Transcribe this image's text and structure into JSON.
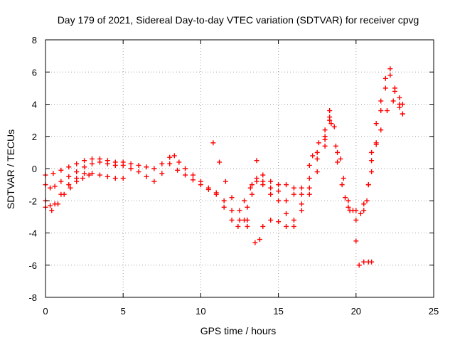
{
  "chart_data": {
    "type": "scatter",
    "title": "Day 179 of 2021, Sidereal Day-to-day VTEC variation (SDTVAR) for receiver cpvg",
    "xlabel": "GPS time / hours",
    "ylabel": "SDTVAR / TECUs",
    "xlim": [
      0,
      25
    ],
    "ylim": [
      -8,
      8
    ],
    "x_ticks": [
      0,
      5,
      10,
      15,
      20,
      25
    ],
    "y_ticks": [
      -8,
      -6,
      -4,
      -2,
      0,
      2,
      4,
      6,
      8
    ],
    "x_tick_labels": [
      "0",
      "5",
      "10",
      "15",
      "20",
      "25"
    ],
    "y_tick_labels": [
      "-8",
      "-6",
      "-4",
      "-2",
      "0",
      "2",
      "4",
      "6",
      "8"
    ],
    "grid": true,
    "marker": "plus",
    "color": "#ff0000",
    "series": [
      {
        "points": [
          [
            0.0,
            -0.4
          ],
          [
            0.5,
            -0.3
          ],
          [
            1.0,
            -0.1
          ],
          [
            1.5,
            0.1
          ],
          [
            2.0,
            0.3
          ],
          [
            2.5,
            0.5
          ],
          [
            3.0,
            0.6
          ],
          [
            3.5,
            0.6
          ],
          [
            4.0,
            0.5
          ],
          [
            4.5,
            0.4
          ],
          [
            5.0,
            0.4
          ],
          [
            5.5,
            0.3
          ],
          [
            6.0,
            0.2
          ],
          [
            6.5,
            0.1
          ],
          [
            7.0,
            0.0
          ],
          [
            7.5,
            0.3
          ],
          [
            8.0,
            0.7
          ],
          [
            8.3,
            0.8
          ],
          [
            8.6,
            0.4
          ],
          [
            9.0,
            0.0
          ],
          [
            9.5,
            -0.4
          ],
          [
            10.0,
            -0.8
          ],
          [
            10.5,
            -1.2
          ],
          [
            11.0,
            -1.6
          ],
          [
            11.5,
            -2.0
          ],
          [
            12.0,
            -2.6
          ],
          [
            12.5,
            -3.2
          ],
          [
            13.0,
            -3.6
          ],
          [
            13.5,
            -4.6
          ],
          [
            13.8,
            -4.4
          ],
          [
            14.0,
            -3.6
          ],
          [
            14.5,
            -3.2
          ],
          [
            15.0,
            -3.3
          ],
          [
            15.5,
            -3.6
          ],
          [
            16.0,
            -3.2
          ],
          [
            16.5,
            -2.2
          ],
          [
            17.0,
            -1.2
          ],
          [
            17.5,
            -0.2
          ],
          [
            18.0,
            1.4
          ],
          [
            18.3,
            3.2
          ],
          [
            18.6,
            2.6
          ],
          [
            19.0,
            0.6
          ],
          [
            19.5,
            -2.0
          ],
          [
            20.0,
            -4.5
          ],
          [
            20.2,
            -6.0
          ],
          [
            20.5,
            -5.8
          ],
          [
            20.8,
            -5.8
          ],
          [
            21.0,
            -5.8
          ]
        ]
      },
      {
        "points": [
          [
            0.0,
            -1.0
          ],
          [
            0.3,
            -1.2
          ],
          [
            0.6,
            -1.1
          ],
          [
            1.0,
            -0.8
          ],
          [
            1.5,
            -0.5
          ],
          [
            2.0,
            -0.2
          ],
          [
            2.5,
            0.1
          ],
          [
            3.0,
            0.3
          ],
          [
            3.5,
            0.4
          ],
          [
            4.0,
            0.3
          ],
          [
            4.5,
            0.2
          ],
          [
            5.0,
            0.2
          ],
          [
            5.5,
            0.0
          ],
          [
            6.0,
            -0.2
          ],
          [
            6.5,
            -0.5
          ],
          [
            7.0,
            -0.8
          ],
          [
            7.5,
            -0.3
          ],
          [
            8.0,
            0.3
          ],
          [
            8.5,
            -0.1
          ],
          [
            9.0,
            -0.4
          ],
          [
            9.5,
            -0.7
          ],
          [
            10.0,
            -1.0
          ],
          [
            10.5,
            -1.3
          ],
          [
            10.8,
            1.6
          ],
          [
            11.2,
            0.4
          ],
          [
            11.6,
            -0.8
          ],
          [
            12.0,
            -1.8
          ],
          [
            12.5,
            -2.6
          ],
          [
            13.0,
            -3.2
          ],
          [
            13.3,
            -1.0
          ],
          [
            13.6,
            0.5
          ],
          [
            14.0,
            -1.0
          ],
          [
            14.5,
            -1.6
          ],
          [
            15.0,
            -2.0
          ],
          [
            15.5,
            -2.8
          ],
          [
            16.0,
            -3.6
          ],
          [
            16.5,
            -2.6
          ],
          [
            17.0,
            -1.6
          ],
          [
            17.2,
            0.8
          ],
          [
            17.6,
            1.6
          ],
          [
            18.0,
            2.4
          ],
          [
            18.4,
            2.8
          ],
          [
            18.8,
            1.0
          ],
          [
            19.2,
            -0.6
          ],
          [
            19.6,
            -2.6
          ],
          [
            20.0,
            -3.2
          ],
          [
            20.5,
            -2.2
          ],
          [
            20.8,
            -1.0
          ],
          [
            21.0,
            0.5
          ],
          [
            21.3,
            1.5
          ],
          [
            21.6,
            2.4
          ],
          [
            22.0,
            3.6
          ],
          [
            22.4,
            4.2
          ],
          [
            22.8,
            4.0
          ],
          [
            23.0,
            3.4
          ]
        ]
      },
      {
        "points": [
          [
            0.0,
            -2.0
          ],
          [
            0.3,
            -2.3
          ],
          [
            0.6,
            -2.2
          ],
          [
            1.0,
            -1.6
          ],
          [
            1.5,
            -1.0
          ],
          [
            2.0,
            -0.6
          ],
          [
            2.5,
            -0.3
          ],
          [
            3.0,
            -0.3
          ],
          [
            3.5,
            -0.4
          ],
          [
            4.0,
            -0.5
          ],
          [
            4.5,
            -0.6
          ],
          [
            5.0,
            -0.6
          ],
          [
            11.0,
            -1.5
          ],
          [
            11.5,
            -2.4
          ],
          [
            12.0,
            -3.2
          ],
          [
            12.4,
            -3.6
          ],
          [
            12.8,
            -3.2
          ],
          [
            13.0,
            -2.4
          ],
          [
            13.3,
            -1.6
          ],
          [
            13.6,
            -0.6
          ],
          [
            14.0,
            -0.8
          ],
          [
            14.5,
            -1.2
          ],
          [
            15.0,
            -1.0
          ],
          [
            15.5,
            -1.0
          ],
          [
            16.0,
            -1.2
          ],
          [
            16.5,
            -1.6
          ],
          [
            17.0,
            -0.6
          ],
          [
            17.5,
            0.6
          ],
          [
            18.0,
            1.8
          ],
          [
            18.3,
            3.6
          ],
          [
            18.7,
            1.4
          ],
          [
            19.1,
            -1.0
          ],
          [
            19.5,
            -2.4
          ],
          [
            20.0,
            -2.6
          ],
          [
            20.5,
            -2.6
          ],
          [
            20.8,
            -1.0
          ],
          [
            21.0,
            1.0
          ],
          [
            21.3,
            2.8
          ],
          [
            21.6,
            4.2
          ],
          [
            21.9,
            5.6
          ],
          [
            22.2,
            6.2
          ],
          [
            22.5,
            5.0
          ],
          [
            22.8,
            4.4
          ],
          [
            23.0,
            4.0
          ]
        ]
      },
      {
        "points": [
          [
            0.0,
            -2.4
          ],
          [
            0.4,
            -2.6
          ],
          [
            0.8,
            -2.2
          ],
          [
            1.2,
            -1.6
          ],
          [
            1.6,
            -1.2
          ],
          [
            2.0,
            -0.8
          ],
          [
            2.4,
            -0.6
          ],
          [
            2.8,
            -0.4
          ],
          [
            12.8,
            -2.0
          ],
          [
            13.2,
            -1.2
          ],
          [
            13.6,
            -0.8
          ],
          [
            14.0,
            -0.4
          ],
          [
            14.5,
            -0.8
          ],
          [
            15.0,
            -1.4
          ],
          [
            15.5,
            -2.0
          ],
          [
            16.0,
            -1.6
          ],
          [
            16.5,
            -1.2
          ],
          [
            17.0,
            0.2
          ],
          [
            17.5,
            1.0
          ],
          [
            18.0,
            2.0
          ],
          [
            18.3,
            3.0
          ],
          [
            18.8,
            0.4
          ],
          [
            19.3,
            -1.8
          ],
          [
            19.8,
            -2.6
          ],
          [
            20.3,
            -2.8
          ],
          [
            20.7,
            -2.0
          ],
          [
            21.0,
            -0.2
          ],
          [
            21.3,
            1.6
          ],
          [
            21.6,
            3.6
          ],
          [
            21.9,
            5.0
          ],
          [
            22.2,
            5.8
          ],
          [
            22.5,
            4.8
          ],
          [
            22.8,
            3.8
          ],
          [
            23.0,
            3.4
          ]
        ]
      }
    ]
  }
}
